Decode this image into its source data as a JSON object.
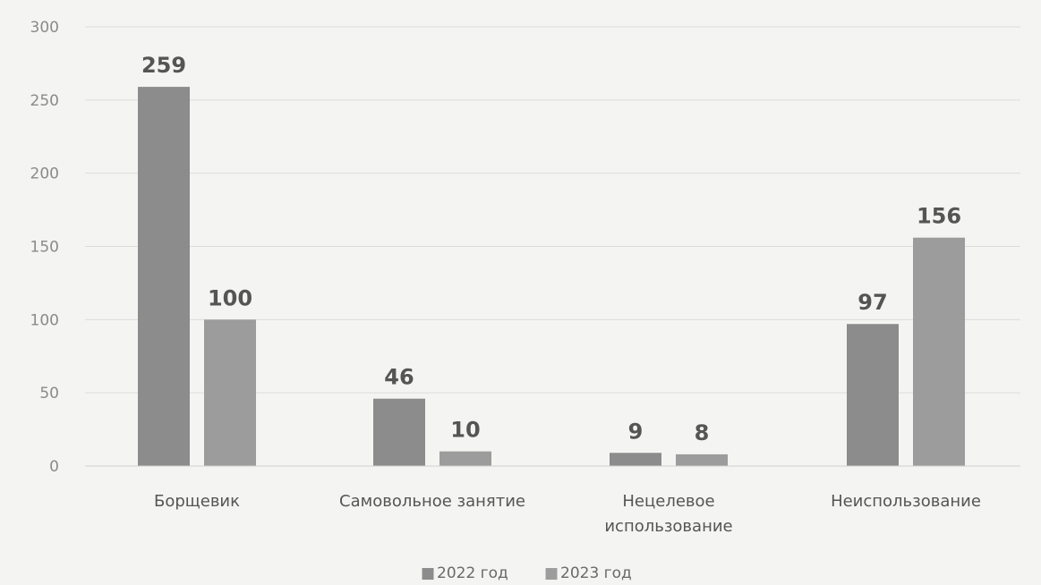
{
  "chart_data": {
    "type": "bar",
    "categories": [
      [
        "Борщевик"
      ],
      [
        "Самовольное занятие"
      ],
      [
        "Нецелевое",
        "использование"
      ],
      [
        "Неиспользование"
      ]
    ],
    "series": [
      {
        "name": "2022 год",
        "values": [
          259,
          46,
          9,
          97
        ],
        "color": "#8c8c8c"
      },
      {
        "name": "2023 год",
        "values": [
          100,
          10,
          8,
          156
        ],
        "color": "#9c9c9c"
      }
    ],
    "data_labels": [
      [
        "259",
        "46",
        "9",
        "97"
      ],
      [
        "100",
        "10",
        "8",
        "156"
      ]
    ],
    "yticks": [
      "0",
      "50",
      "100",
      "150",
      "200",
      "250",
      "300"
    ],
    "ylim": [
      0,
      300
    ],
    "grid": true,
    "legend_position": "bottom",
    "legend_marker": "■"
  }
}
